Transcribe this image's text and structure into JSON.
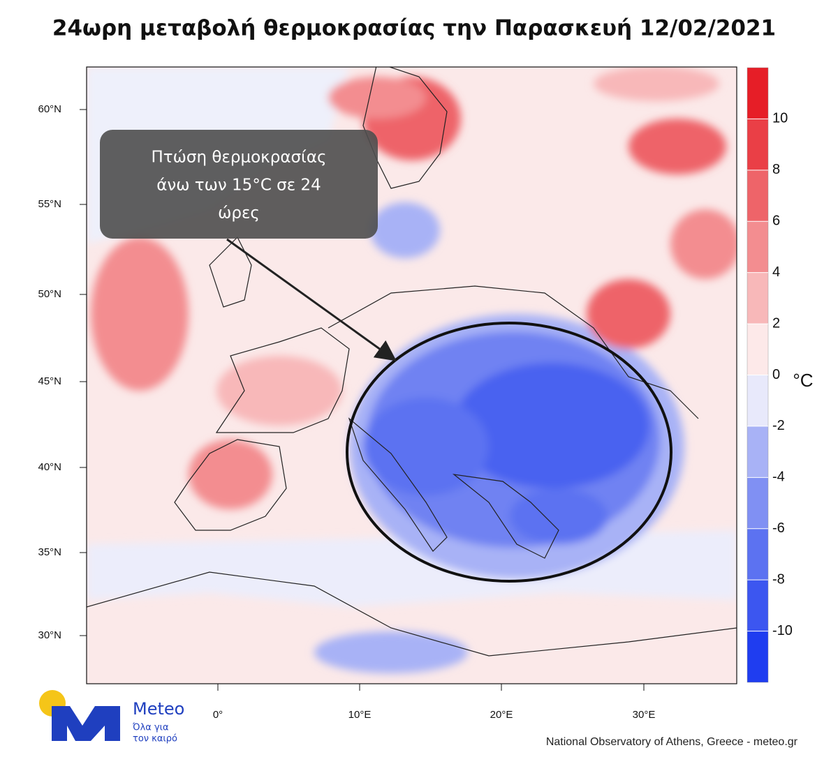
{
  "title": "24ωρη μεταβολή θερμοκρασίας την Παρασκευή 12/02/2021",
  "map": {
    "lat_ticks": [
      {
        "value": 60,
        "label": "60°N"
      },
      {
        "value": 55,
        "label": "55°N"
      },
      {
        "value": 50,
        "label": "50°N"
      },
      {
        "value": 45,
        "label": "45°N"
      },
      {
        "value": 40,
        "label": "40°N"
      },
      {
        "value": 35,
        "label": "35°N"
      },
      {
        "value": 30,
        "label": "30°N"
      }
    ],
    "lon_ticks": [
      {
        "value": 0,
        "label": "0°"
      },
      {
        "value": 10,
        "label": "10°E"
      },
      {
        "value": 20,
        "label": "20°E"
      },
      {
        "value": 30,
        "label": "30°E"
      }
    ]
  },
  "colorbar": {
    "lim": [
      -12,
      12
    ],
    "ticks": [
      10,
      8,
      6,
      4,
      2,
      0,
      -2,
      -4,
      -6,
      -8,
      -10
    ],
    "unit": "°C",
    "colors": [
      "#1f3df0",
      "#3c56f0",
      "#5c72f1",
      "#8090f3",
      "#a8b2f6",
      "#e8e9fb",
      "#fde9e9",
      "#f8b8b9",
      "#f38d90",
      "#ee6469",
      "#ea3f46",
      "#e61e27"
    ]
  },
  "annotation": {
    "lines": [
      "Πτώση θερμοκρασίας",
      "άνω των 15°C σε 24",
      "ώρες"
    ]
  },
  "logo": {
    "name": "Meteo",
    "tagline": [
      "Όλα για",
      "τον καιρό"
    ]
  },
  "credit": "National Observatory of Athens, Greece - meteo.gr"
}
